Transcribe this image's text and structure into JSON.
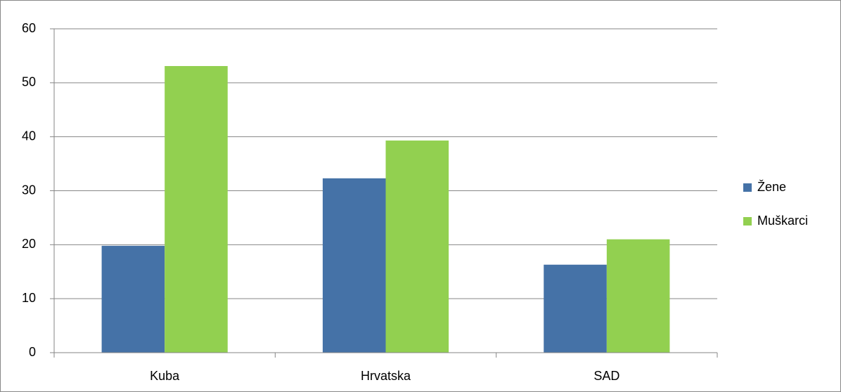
{
  "chart_data": {
    "type": "bar",
    "categories": [
      "Kuba",
      "Hrvatska",
      "SAD"
    ],
    "series": [
      {
        "name": "Žene",
        "color": "#4572a7",
        "values": [
          19.8,
          32.3,
          16.3
        ]
      },
      {
        "name": "Muškarci",
        "color": "#92d050",
        "values": [
          53.1,
          39.3,
          21.0
        ]
      }
    ],
    "ylim": [
      0,
      60
    ],
    "yticks": [
      0,
      10,
      20,
      30,
      40,
      50,
      60
    ],
    "grid": true,
    "legend": "right"
  }
}
